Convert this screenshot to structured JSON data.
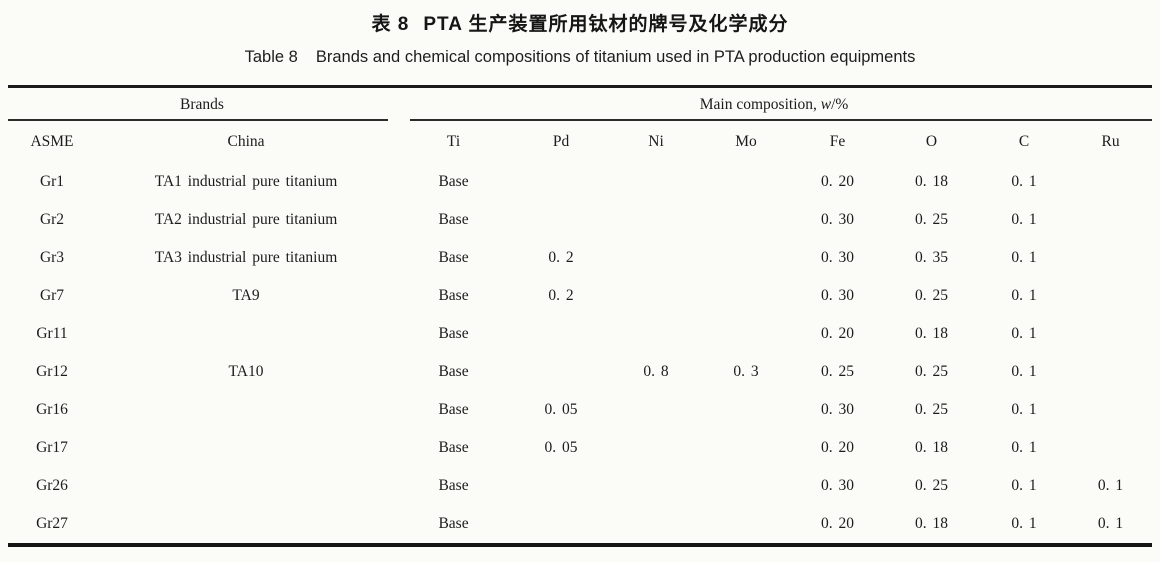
{
  "page": {
    "title_cn_label": "表 8",
    "title_cn_text": "PTA 生产装置所用钛材的牌号及化学成分",
    "title_en_label": "Table 8",
    "title_en_text": "Brands and chemical compositions of titanium used in PTA production equipments"
  },
  "colors": {
    "paper_background": "#fbfbf8",
    "text": "#1b1b1b",
    "rule": "#1a1a1a"
  },
  "table": {
    "group_headers": {
      "brands": "Brands",
      "composition_prefix": "Main composition, ",
      "composition_italic": "w",
      "composition_suffix": "/%"
    },
    "columns": [
      "ASME",
      "China",
      "Ti",
      "Pd",
      "Ni",
      "Mo",
      "Fe",
      "O",
      "C",
      "Ru"
    ],
    "rows": [
      [
        "Gr1",
        "TA1 industrial pure titanium",
        "Base",
        "",
        "",
        "",
        "0. 20",
        "0. 18",
        "0. 1",
        ""
      ],
      [
        "Gr2",
        "TA2 industrial pure titanium",
        "Base",
        "",
        "",
        "",
        "0. 30",
        "0. 25",
        "0. 1",
        ""
      ],
      [
        "Gr3",
        "TA3 industrial pure titanium",
        "Base",
        "0. 2",
        "",
        "",
        "0. 30",
        "0. 35",
        "0. 1",
        ""
      ],
      [
        "Gr7",
        "TA9",
        "Base",
        "0. 2",
        "",
        "",
        "0. 30",
        "0. 25",
        "0. 1",
        ""
      ],
      [
        "Gr11",
        "",
        "Base",
        "",
        "",
        "",
        "0. 20",
        "0. 18",
        "0. 1",
        ""
      ],
      [
        "Gr12",
        "TA10",
        "Base",
        "",
        "0. 8",
        "0. 3",
        "0. 25",
        "0. 25",
        "0. 1",
        ""
      ],
      [
        "Gr16",
        "",
        "Base",
        "0. 05",
        "",
        "",
        "0. 30",
        "0. 25",
        "0. 1",
        ""
      ],
      [
        "Gr17",
        "",
        "Base",
        "0. 05",
        "",
        "",
        "0. 20",
        "0. 18",
        "0. 1",
        ""
      ],
      [
        "Gr26",
        "",
        "Base",
        "",
        "",
        "",
        "0. 30",
        "0. 25",
        "0. 1",
        "0. 1"
      ],
      [
        "Gr27",
        "",
        "Base",
        "",
        "",
        "",
        "0. 20",
        "0. 18",
        "0. 1",
        "0. 1"
      ]
    ]
  }
}
